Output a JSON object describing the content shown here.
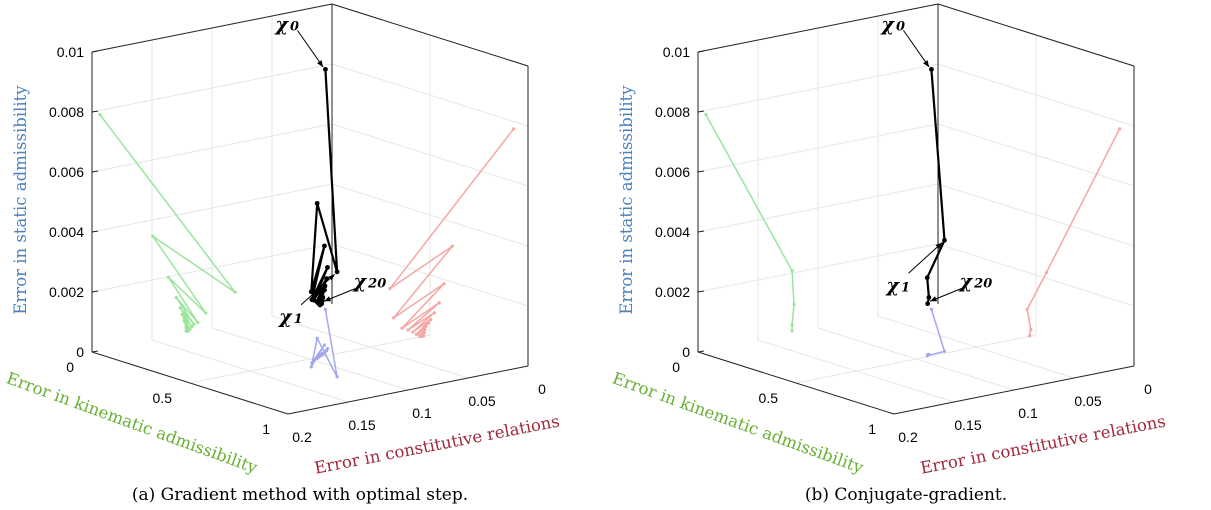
{
  "axes": {
    "z_label": "Error in static admissibility",
    "y_label": "Error in kinematic admissibility",
    "x_label": "Error in constitutive relations",
    "z_ticks": [
      "0",
      "0.002",
      "0.004",
      "0.006",
      "0.008",
      "0.01"
    ],
    "y_ticks": [
      "0",
      "0.5",
      "1"
    ],
    "x_ticks": [
      "0",
      "0.05",
      "0.1",
      "0.15",
      "0.2"
    ],
    "z_color": "#4d82c0",
    "y_color": "#66b032",
    "x_color": "#a0283c"
  },
  "colors": {
    "path": "#000000",
    "proj_kinematic": "#9be59b",
    "proj_constitutive": "#f4a7a4",
    "proj_base": "#a3a8ee",
    "grid": "#e6e6e6",
    "box": "#222222"
  },
  "chart_data": [
    {
      "type": "line",
      "caption": "(a) Gradient method with optimal step.",
      "annotations": [
        {
          "symbol": "χ",
          "subscript": "0",
          "iterate": 0
        },
        {
          "symbol": "χ",
          "subscript": "1",
          "iterate": 1
        },
        {
          "symbol": "χ",
          "subscript": "20",
          "iterate": 20
        }
      ],
      "xlabel": "Error in constitutive relations",
      "ylabel": "Error in kinematic admissibility",
      "zlabel": "Error in static admissibility",
      "xlim": [
        0,
        0.2
      ],
      "ylim": [
        0,
        1
      ],
      "zlim": [
        0,
        0.01
      ],
      "series": [
        {
          "x": [
            0.012,
            0.115,
            0.063,
            0.112,
            0.07,
            0.105,
            0.074,
            0.1,
            0.078,
            0.096,
            0.081,
            0.093,
            0.083,
            0.091,
            0.085,
            0.09,
            0.086,
            0.089,
            0.0865,
            0.088,
            0.087
          ],
          "y": [
            0.04,
            0.73,
            0.31,
            0.58,
            0.39,
            0.54,
            0.43,
            0.52,
            0.45,
            0.51,
            0.46,
            0.5,
            0.47,
            0.49,
            0.47,
            0.49,
            0.48,
            0.485,
            0.48,
            0.482,
            0.48
          ],
          "z": [
            0.008,
            0.0035,
            0.0045,
            0.0025,
            0.0033,
            0.0021,
            0.0027,
            0.002,
            0.0024,
            0.0019,
            0.0022,
            0.0018,
            0.0021,
            0.0018,
            0.002,
            0.0017,
            0.0019,
            0.0017,
            0.0018,
            0.0017,
            0.0017
          ]
        }
      ]
    },
    {
      "type": "line",
      "caption": "(b) Conjugate-gradient.",
      "annotations": [
        {
          "symbol": "χ",
          "subscript": "0",
          "iterate": 0
        },
        {
          "symbol": "χ",
          "subscript": "1",
          "iterate": 1
        },
        {
          "symbol": "χ",
          "subscript": "20",
          "iterate": 4
        }
      ],
      "xlabel": "Error in constitutive relations",
      "ylabel": "Error in kinematic admissibility",
      "zlabel": "Error in static admissibility",
      "xlim": [
        0,
        0.2
      ],
      "ylim": [
        0,
        1
      ],
      "zlim": [
        0,
        0.01
      ],
      "series": [
        {
          "x": [
            0.012,
            0.073,
            0.089,
            0.086,
            0.087
          ],
          "y": [
            0.04,
            0.48,
            0.49,
            0.48,
            0.48
          ],
          "z": [
            0.008,
            0.0037,
            0.0026,
            0.0019,
            0.0017
          ]
        }
      ]
    }
  ]
}
